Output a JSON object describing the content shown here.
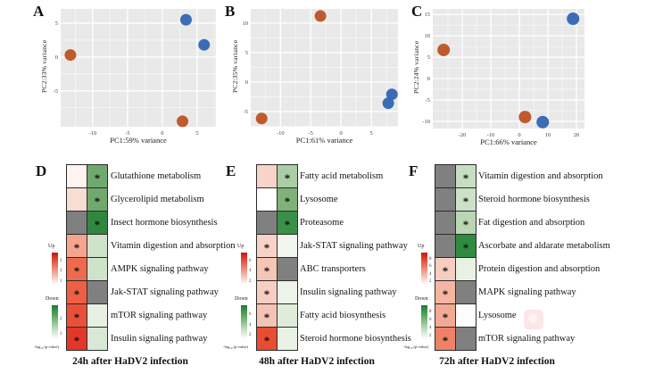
{
  "chart_data": [
    {
      "type": "scatter",
      "panel": "A",
      "xlabel": "PC1:59% variance",
      "ylabel": "PC2:33% variance",
      "xlim": [
        -14.6,
        7.7
      ],
      "ylim": [
        -10.3,
        7.1
      ],
      "xticks": [
        -10,
        -5,
        0,
        5
      ],
      "yticks": [
        -5,
        0,
        5
      ],
      "grid": true,
      "plot_bg": "#e9e9e9",
      "series": [
        {
          "name": "group-blue",
          "color": "#3b6db5",
          "points": [
            [
              3.4,
              5.5
            ],
            [
              6.0,
              1.8
            ]
          ]
        },
        {
          "name": "group-orange",
          "color": "#bf5a2d",
          "points": [
            [
              -13.2,
              0.3
            ],
            [
              2.9,
              -9.5
            ]
          ]
        }
      ]
    },
    {
      "type": "scatter",
      "panel": "B",
      "xlabel": "PC1:61% variance",
      "ylabel": "PC2:35% variance",
      "xlim": [
        -14.9,
        9.4
      ],
      "ylim": [
        -7.6,
        12.4
      ],
      "xticks": [
        -10,
        -5,
        0,
        5
      ],
      "yticks": [
        -5,
        0,
        5,
        10
      ],
      "grid": true,
      "plot_bg": "#e9e9e9",
      "series": [
        {
          "name": "group-blue",
          "color": "#3b6db5",
          "points": [
            [
              8.4,
              -2.1
            ],
            [
              7.8,
              -3.6
            ]
          ]
        },
        {
          "name": "group-orange",
          "color": "#bf5a2d",
          "points": [
            [
              -3.4,
              11.2
            ],
            [
              -13.1,
              -6.2
            ]
          ]
        }
      ]
    },
    {
      "type": "scatter",
      "panel": "C",
      "xlabel": "PC1:66% variance",
      "ylabel": "PC2:24% variance",
      "xlim": [
        -30.3,
        22.8
      ],
      "ylim": [
        -11.7,
        16.3
      ],
      "xticks": [
        -20,
        -10,
        0,
        10,
        20
      ],
      "yticks": [
        -10,
        -5,
        0,
        5,
        10,
        15
      ],
      "grid": true,
      "plot_bg": "#e9e9e9",
      "series": [
        {
          "name": "group-blue",
          "color": "#3b6db5",
          "points": [
            [
              18.8,
              14.0
            ],
            [
              8.2,
              -10.2
            ]
          ]
        },
        {
          "name": "group-orange",
          "color": "#bf5a2d",
          "points": [
            [
              -26.5,
              6.7
            ],
            [
              2.0,
              -9.0
            ]
          ]
        }
      ]
    },
    {
      "type": "heatmap",
      "panel": "D",
      "caption": "24h after HaDV2 infection",
      "columns": [
        "Up",
        "Down"
      ],
      "legend": {
        "up_label": "Up",
        "down_label": "Down",
        "scale_label": "-log₁₀ (p-value)",
        "up_ticks": [
          3,
          2,
          1
        ],
        "down_ticks": [
          2,
          1
        ]
      },
      "na_color": "#808080",
      "rows": [
        {
          "pathway": "Glutathione metabolism",
          "up": {
            "color": "#fdf4f0",
            "star": false
          },
          "down": {
            "color": "#6fa96d",
            "star": true
          }
        },
        {
          "pathway": "Glycerolipid metabolism",
          "up": {
            "color": "#f8ddd3",
            "star": false
          },
          "down": {
            "color": "#6fa96d",
            "star": true
          }
        },
        {
          "pathway": "Insect hormone biosynthesis",
          "up": {
            "color": "#808080",
            "star": false
          },
          "down": {
            "color": "#31873f",
            "star": true
          }
        },
        {
          "pathway": "Vitamin digestion and absorption",
          "up": {
            "color": "#f5a58e",
            "star": true
          },
          "down": {
            "color": "#cfe2ca",
            "star": false
          }
        },
        {
          "pathway": "AMPK signaling pathway",
          "up": {
            "color": "#ee6b4e",
            "star": true
          },
          "down": {
            "color": "#cfe2ca",
            "star": false
          }
        },
        {
          "pathway": "Jak-STAT signaling pathway",
          "up": {
            "color": "#ed6045",
            "star": true
          },
          "down": {
            "color": "#808080",
            "star": false
          }
        },
        {
          "pathway": "mTOR signaling pathway",
          "up": {
            "color": "#ea5038",
            "star": true
          },
          "down": {
            "color": "#e8f0e4",
            "star": false
          }
        },
        {
          "pathway": "Insulin signaling pathway",
          "up": {
            "color": "#e2372a",
            "star": true
          },
          "down": {
            "color": "#d9e8d4",
            "star": false
          }
        }
      ]
    },
    {
      "type": "heatmap",
      "panel": "E",
      "caption": "48h after HaDV2 infection",
      "columns": [
        "Up",
        "Down"
      ],
      "legend": {
        "up_label": "Up",
        "down_label": "Down",
        "scale_label": "-log₁₀ (p-value)",
        "up_ticks": [
          6,
          4,
          2
        ],
        "down_ticks": [
          6,
          4,
          2
        ]
      },
      "na_color": "#808080",
      "rows": [
        {
          "pathway": "Fatty acid metabolism",
          "up": {
            "color": "#f7d4c8",
            "star": false
          },
          "down": {
            "color": "#a9cda5",
            "star": true
          }
        },
        {
          "pathway": "Lysosome",
          "up": {
            "color": "#ffffff",
            "star": false
          },
          "down": {
            "color": "#7fb17b",
            "star": true
          }
        },
        {
          "pathway": "Proteasome",
          "up": {
            "color": "#808080",
            "star": false
          },
          "down": {
            "color": "#3a9048",
            "star": true
          }
        },
        {
          "pathway": "Jak-STAT signaling pathway",
          "up": {
            "color": "#f8d2c6",
            "star": true
          },
          "down": {
            "color": "#f0f5ed",
            "star": false
          }
        },
        {
          "pathway": "ABC transporters",
          "up": {
            "color": "#f5c5b6",
            "star": true
          },
          "down": {
            "color": "#808080",
            "star": false
          }
        },
        {
          "pathway": "Insulin signaling pathway",
          "up": {
            "color": "#f7cfc2",
            "star": true
          },
          "down": {
            "color": "#ecf3e8",
            "star": false
          }
        },
        {
          "pathway": "Fatty acid biosynthesis",
          "up": {
            "color": "#f5c3b4",
            "star": true
          },
          "down": {
            "color": "#dfecda",
            "star": false
          }
        },
        {
          "pathway": "Steroid hormone biosynthesis",
          "up": {
            "color": "#e84c31",
            "star": true
          },
          "down": {
            "color": "#eaf2e6",
            "star": false
          }
        }
      ]
    },
    {
      "type": "heatmap",
      "panel": "F",
      "caption": "72h after HaDV2 infection",
      "columns": [
        "Up",
        "Down"
      ],
      "legend": {
        "up_label": "Up",
        "down_label": "Down",
        "scale_label": "-log₁₀ (p-value)",
        "up_ticks": [
          8,
          6,
          4,
          2
        ],
        "down_ticks": [
          8,
          6,
          4,
          2
        ]
      },
      "na_color": "#808080",
      "rows": [
        {
          "pathway": "Vitamin digestion and absorption",
          "up": {
            "color": "#808080",
            "star": false
          },
          "down": {
            "color": "#c7dec2",
            "star": true
          }
        },
        {
          "pathway": "Steroid hormone biosynthesis",
          "up": {
            "color": "#808080",
            "star": false
          },
          "down": {
            "color": "#cce1c8",
            "star": true
          }
        },
        {
          "pathway": "Fat digestion and absorption",
          "up": {
            "color": "#808080",
            "star": false
          },
          "down": {
            "color": "#bad7b4",
            "star": true
          }
        },
        {
          "pathway": "Ascorbate and aldarate metabolism",
          "up": {
            "color": "#808080",
            "star": false
          },
          "down": {
            "color": "#2e8b3f",
            "star": true
          }
        },
        {
          "pathway": "Protein digestion and absorption",
          "up": {
            "color": "#f7cdbf",
            "star": true
          },
          "down": {
            "color": "#e9f1e5",
            "star": false
          }
        },
        {
          "pathway": "MAPK signaling pathway",
          "up": {
            "color": "#f4b6a3",
            "star": true
          },
          "down": {
            "color": "#808080",
            "star": false
          }
        },
        {
          "pathway": "Lysosome",
          "up": {
            "color": "#f3aa94",
            "star": true
          },
          "down": {
            "color": "#fefcfb",
            "star": false
          }
        },
        {
          "pathway": "mTOR signaling pathway",
          "up": {
            "color": "#ef8166",
            "star": true
          },
          "down": {
            "color": "#808080",
            "star": false
          }
        }
      ]
    }
  ],
  "colors": {
    "point_blue": "#3b6db5",
    "point_orange": "#bf5a2d",
    "plot_background": "#e9e9e9",
    "gridline": "#ffffff",
    "na_gray": "#808080"
  },
  "artifacts": {
    "overlay_icon": "faint-pink-rounded-square-badge"
  }
}
